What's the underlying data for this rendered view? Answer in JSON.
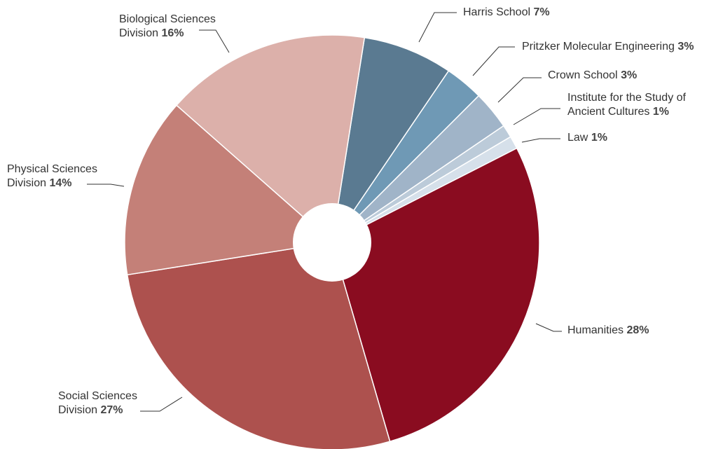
{
  "chart_data": {
    "type": "pie",
    "categories": [
      "Harris School",
      "Pritzker Molecular Engineering",
      "Crown School",
      "Institute for the Study of Ancient Cultures",
      "Law",
      "Humanities",
      "Social Sciences Division",
      "Physical Sciences Division",
      "Biological Sciences Division"
    ],
    "values": [
      7,
      3,
      3,
      1,
      1,
      28,
      27,
      14,
      16
    ],
    "value_labels": [
      "7%",
      "3%",
      "3%",
      "1%",
      "1%",
      "28%",
      "27%",
      "14%",
      "16%"
    ],
    "colors": [
      "#5a7a91",
      "#6f99b5",
      "#a0b4c8",
      "#bccbd9",
      "#d6e0ea",
      "#8a0c20",
      "#ad514e",
      "#c48078",
      "#dcb0aa"
    ]
  }
}
